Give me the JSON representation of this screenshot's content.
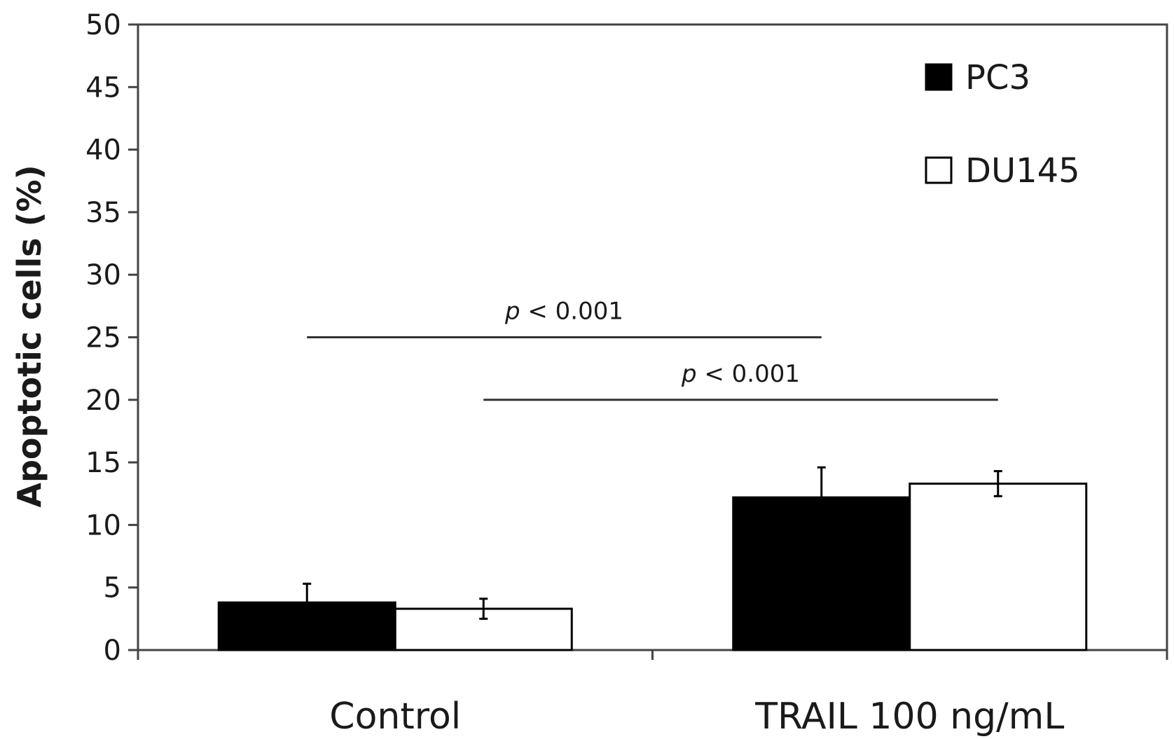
{
  "chart_data": {
    "type": "bar",
    "title": "",
    "xlabel": "",
    "ylabel": "Apoptotic cells (%)",
    "ylim": [
      0,
      50
    ],
    "yticks": [
      0,
      5,
      10,
      15,
      20,
      25,
      30,
      35,
      40,
      45,
      50
    ],
    "grid": false,
    "legend_position": "top-right",
    "categories": [
      "Control",
      "TRAIL 100 ng/mL"
    ],
    "series": [
      {
        "name": "PC3",
        "color": "#000000",
        "values": [
          3.8,
          12.2
        ],
        "errors": [
          1.5,
          2.4
        ]
      },
      {
        "name": "DU145",
        "color": "#ffffff",
        "values": [
          3.3,
          13.3
        ],
        "errors": [
          0.8,
          1.0
        ]
      }
    ],
    "annotations": [
      {
        "text": "p < 0.001",
        "p_symbol": "p",
        "rest": " < 0.001",
        "y": 25,
        "from": "Control PC3",
        "to": "TRAIL 100 ng/mL PC3"
      },
      {
        "text": "p < 0.001",
        "p_symbol": "p",
        "rest": " < 0.001",
        "y": 20,
        "from": "Control DU145",
        "to": "TRAIL 100 ng/mL DU145"
      }
    ]
  }
}
